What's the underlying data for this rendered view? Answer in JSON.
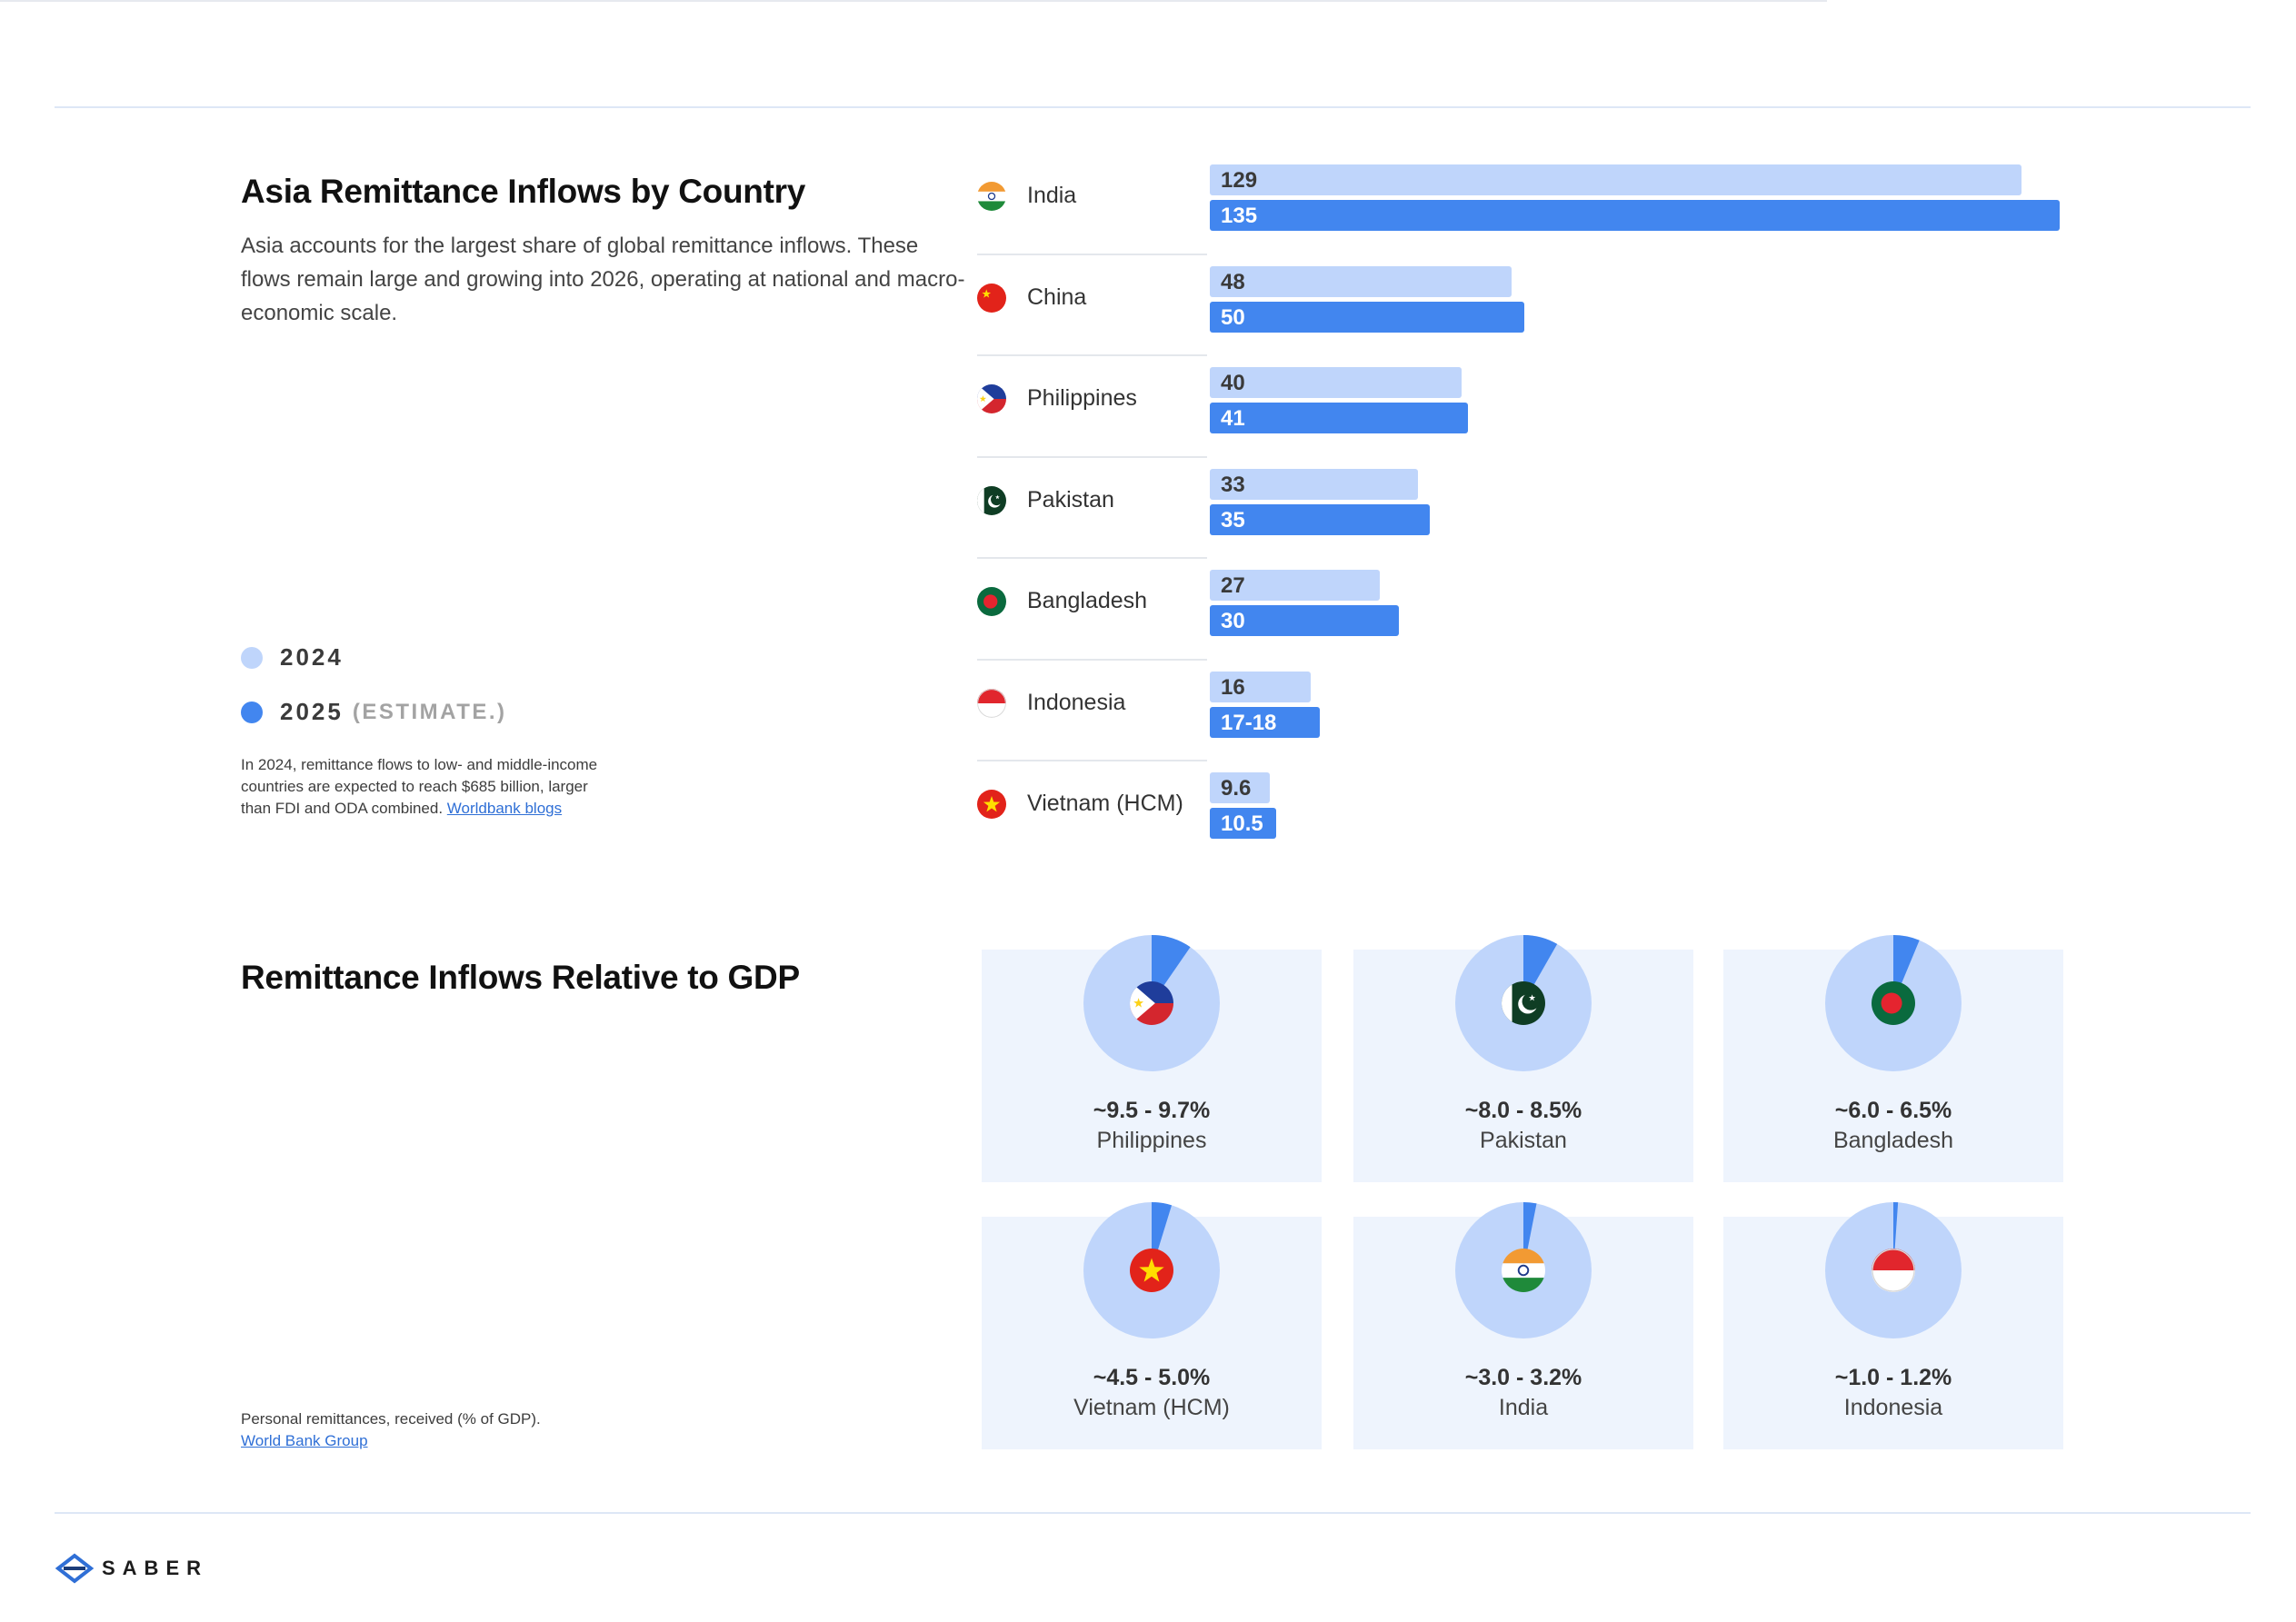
{
  "section1": {
    "title": "Asia Remittance Inflows by Country",
    "description": "Asia accounts for the largest share of global remittance inflows. These flows remain large and growing into 2026, operating at national and macro-economic scale."
  },
  "legend": {
    "year1": "2024",
    "year2": "2025",
    "year2_suffix": "(ESTIMATE.)",
    "color_2024": "#bfd5fb",
    "color_2025": "#4286ef"
  },
  "note1": {
    "text": "In 2024, remittance flows to low- and middle-income countries are expected to reach $685 billion, larger than FDI and ODA combined.",
    "link": "Worldbank blogs"
  },
  "section2": {
    "title": "Remittance Inflows Relative to GDP"
  },
  "note2": {
    "text": "Personal remittances, received (% of GDP).",
    "link": "World Bank Group"
  },
  "logo": {
    "text": "SABER"
  },
  "chart_data": [
    {
      "type": "bar",
      "orientation": "horizontal",
      "categories": [
        "India",
        "China",
        "Philippines",
        "Pakistan",
        "Bangladesh",
        "Indonesia",
        "Vietnam (HCM)"
      ],
      "flags": [
        "india-flag-icon",
        "china-flag-icon",
        "philippines-flag-icon",
        "pakistan-flag-icon",
        "bangladesh-flag-icon",
        "indonesia-flag-icon",
        "vietnam-flag-icon"
      ],
      "series": [
        {
          "name": "2024",
          "values": [
            129,
            48,
            40,
            33,
            27,
            16,
            9.6
          ],
          "labels": [
            "129",
            "48",
            "40",
            "33",
            "27",
            "16",
            "9.6"
          ],
          "color": "#bfd5fb"
        },
        {
          "name": "2025",
          "values": [
            135,
            50,
            41,
            35,
            30,
            17.5,
            10.5
          ],
          "labels": [
            "135",
            "50",
            "41",
            "35",
            "30",
            "17-18",
            "10.5"
          ],
          "color": "#4286ef"
        }
      ],
      "xlim": [
        0,
        135
      ],
      "grid": false,
      "legend": "left"
    },
    {
      "type": "pie",
      "title": "Remittance Inflows Relative to GDP",
      "items": [
        {
          "name": "Philippines",
          "label": "~9.5 - 9.7%",
          "value": 9.6,
          "flag": "philippines-flag-icon"
        },
        {
          "name": "Pakistan",
          "label": "~8.0 - 8.5%",
          "value": 8.25,
          "flag": "pakistan-flag-icon"
        },
        {
          "name": "Bangladesh",
          "label": "~6.0 - 6.5%",
          "value": 6.25,
          "flag": "bangladesh-flag-icon"
        },
        {
          "name": "Vietnam (HCM)",
          "label": "~4.5 - 5.0%",
          "value": 4.75,
          "flag": "vietnam-flag-icon"
        },
        {
          "name": "India",
          "label": "~3.0 - 3.2%",
          "value": 3.1,
          "flag": "india-flag-icon"
        },
        {
          "name": "Indonesia",
          "label": "~1.0 - 1.2%",
          "value": 1.1,
          "flag": "indonesia-flag-icon"
        }
      ],
      "colors": {
        "share": "#4286ef",
        "rest": "#bfd5fb"
      }
    }
  ]
}
